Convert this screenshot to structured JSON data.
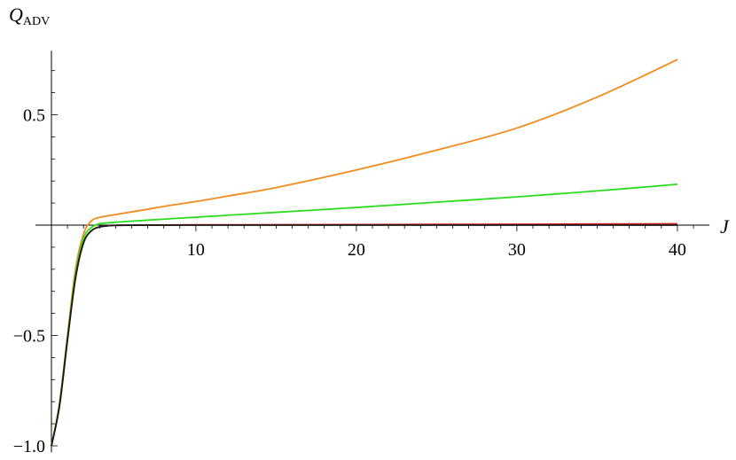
{
  "chart_data": {
    "type": "line",
    "title": "",
    "xlabel": "J",
    "ylabel_main": "Q",
    "ylabel_sub": "ADV",
    "xlim": [
      0.5,
      42
    ],
    "ylim": [
      -1.03,
      0.79
    ],
    "xticks": [
      10,
      20,
      30,
      40
    ],
    "xtick_labels": [
      "10",
      "20",
      "30",
      "40"
    ],
    "yticks": [
      -1.0,
      -0.5,
      0.5
    ],
    "ytick_labels": [
      "-1.0",
      "-0.5",
      "0.5"
    ],
    "grid": false,
    "legend": "none",
    "series": [
      {
        "color": "#f08c1e",
        "x": [
          1,
          1.5,
          2,
          2.5,
          3,
          3.5,
          4,
          4.5,
          5,
          6,
          7,
          8,
          10,
          12,
          15,
          20,
          25,
          30,
          35,
          40
        ],
        "y": [
          -1.0,
          -0.81,
          -0.5,
          -0.2,
          -0.04,
          0.02,
          0.035,
          0.042,
          0.048,
          0.06,
          0.072,
          0.085,
          0.107,
          0.132,
          0.17,
          0.25,
          0.34,
          0.44,
          0.58,
          0.75
        ]
      },
      {
        "color": "#2ddc1e",
        "x": [
          1,
          1.5,
          2,
          2.5,
          3,
          3.5,
          4,
          4.5,
          5,
          6,
          8,
          10,
          15,
          20,
          25,
          30,
          35,
          40
        ],
        "y": [
          -1.0,
          -0.81,
          -0.51,
          -0.22,
          -0.06,
          -0.01,
          0.006,
          0.01,
          0.013,
          0.018,
          0.027,
          0.036,
          0.058,
          0.08,
          0.104,
          0.128,
          0.155,
          0.185
        ]
      },
      {
        "color": "#d21e1e",
        "x": [
          1,
          1.5,
          2,
          2.5,
          3,
          3.5,
          4,
          4.5,
          5,
          6,
          10,
          20,
          30,
          40
        ],
        "y": [
          -1.0,
          -0.82,
          -0.52,
          -0.24,
          -0.08,
          -0.025,
          -0.008,
          -0.003,
          -0.001,
          0.0,
          0.0012,
          0.0025,
          0.004,
          0.006
        ]
      },
      {
        "color": "#1a1a1a",
        "x": [
          1,
          1.5,
          2,
          2.5,
          3,
          3.5,
          4,
          4.5,
          5,
          6,
          10,
          20,
          30,
          40
        ],
        "y": [
          -1.0,
          -0.82,
          -0.52,
          -0.24,
          -0.08,
          -0.025,
          -0.008,
          -0.003,
          -0.001,
          -0.0003,
          0.0,
          0.0,
          0.0,
          0.0
        ]
      }
    ]
  }
}
